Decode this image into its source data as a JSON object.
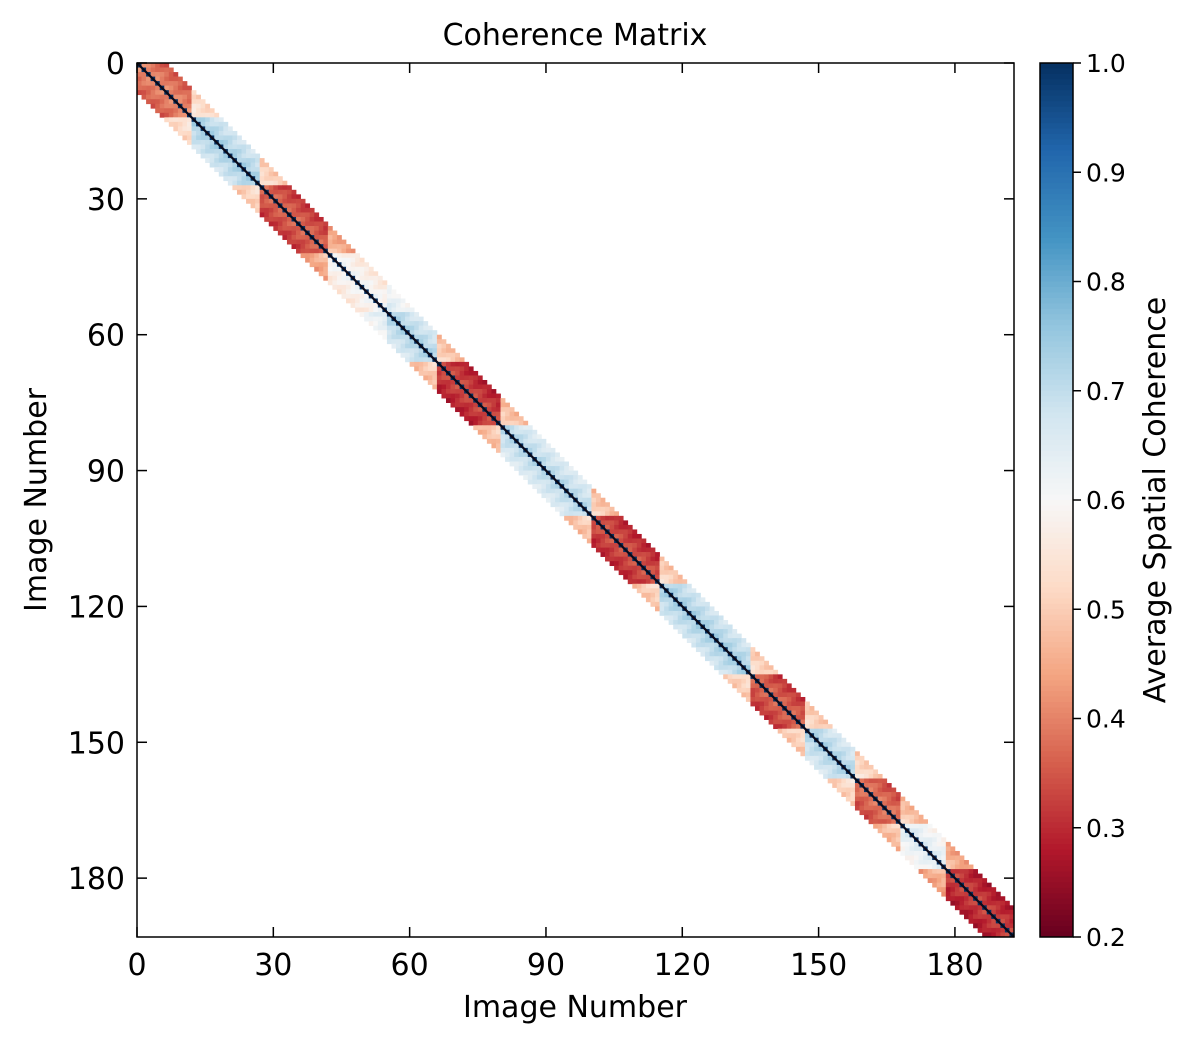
{
  "chart_data": {
    "type": "heatmap",
    "title": "Coherence Matrix",
    "xlabel": "Image Number",
    "ylabel": "Image Number",
    "xlim": [
      0,
      193
    ],
    "ylim": [
      193,
      0
    ],
    "x_ticks": [
      0,
      30,
      60,
      90,
      120,
      150,
      180
    ],
    "y_ticks": [
      0,
      30,
      60,
      90,
      120,
      150,
      180
    ],
    "n_images": 193,
    "band_halfwidth": 6,
    "diagonal_value": 1.0,
    "colorbar": {
      "label": "Average Spatial Coherence",
      "range": [
        0.2,
        1.0
      ],
      "ticks": [
        0.2,
        0.3,
        0.4,
        0.5,
        0.6,
        0.7,
        0.8,
        0.9,
        1.0
      ],
      "colormap": "RdBu",
      "colors": [
        "#67001f",
        "#b2182b",
        "#d6604d",
        "#f4a582",
        "#fddbc7",
        "#f7f7f7",
        "#d1e5f0",
        "#92c5de",
        "#4393c3",
        "#2166ac",
        "#053061"
      ]
    },
    "segments": [
      {
        "range": [
          0,
          12
        ],
        "mean": 0.42
      },
      {
        "range": [
          12,
          27
        ],
        "mean": 0.74
      },
      {
        "range": [
          27,
          42
        ],
        "mean": 0.38
      },
      {
        "range": [
          42,
          55
        ],
        "mean": 0.62
      },
      {
        "range": [
          55,
          66
        ],
        "mean": 0.73
      },
      {
        "range": [
          66,
          80
        ],
        "mean": 0.35
      },
      {
        "range": [
          80,
          100
        ],
        "mean": 0.72
      },
      {
        "range": [
          100,
          115
        ],
        "mean": 0.36
      },
      {
        "range": [
          115,
          135
        ],
        "mean": 0.74
      },
      {
        "range": [
          135,
          147
        ],
        "mean": 0.38
      },
      {
        "range": [
          147,
          158
        ],
        "mean": 0.73
      },
      {
        "range": [
          158,
          168
        ],
        "mean": 0.4
      },
      {
        "range": [
          168,
          178
        ],
        "mean": 0.66
      },
      {
        "range": [
          178,
          193
        ],
        "mean": 0.34
      }
    ],
    "grid": false
  }
}
